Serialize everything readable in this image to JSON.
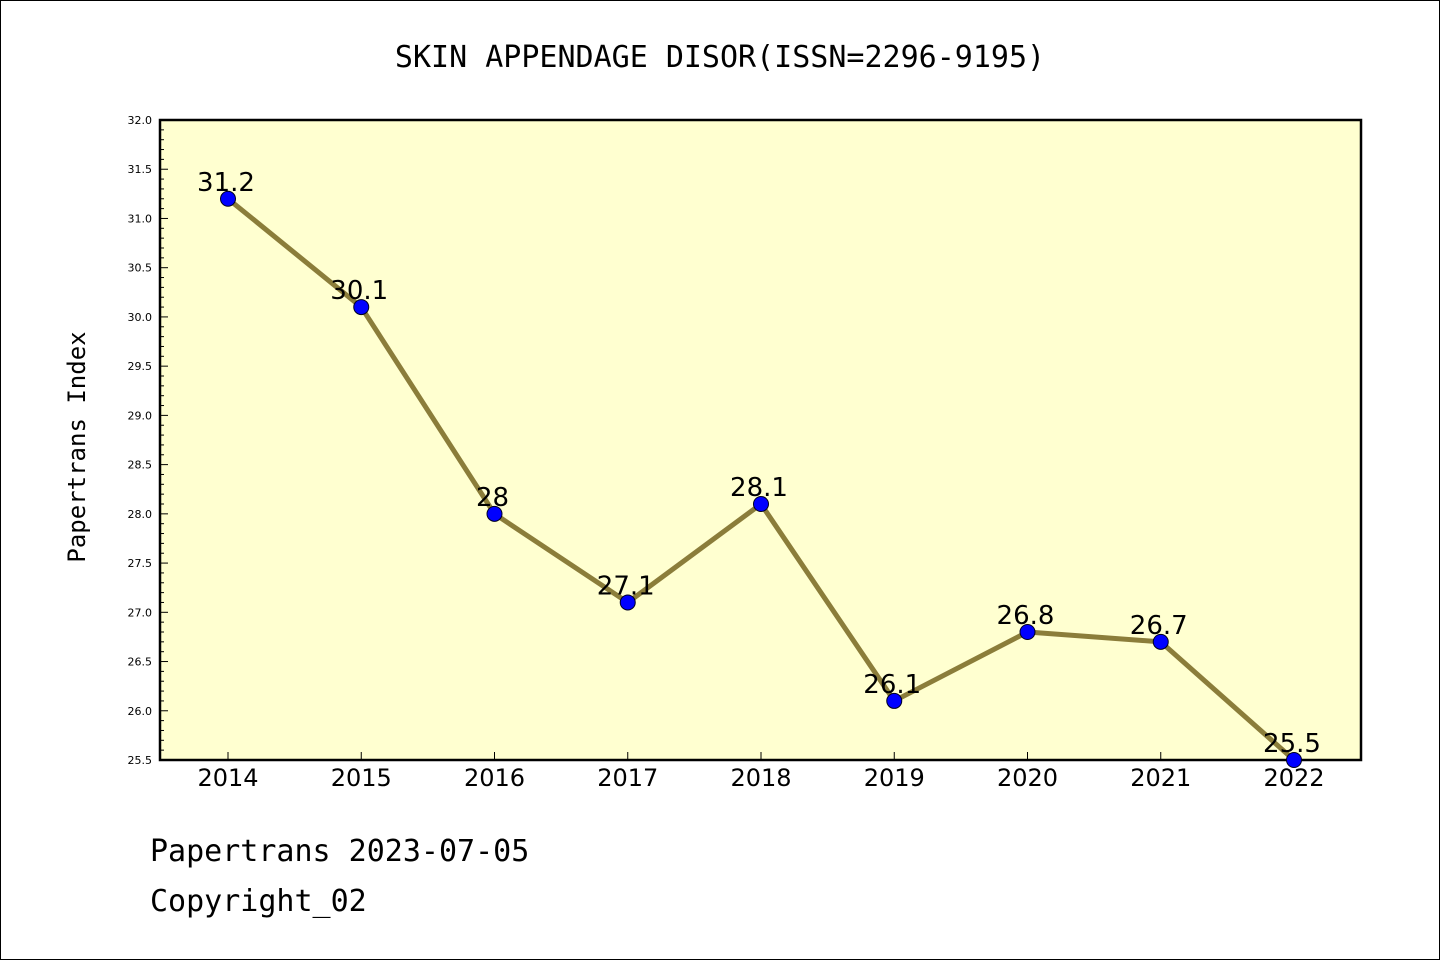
{
  "chart_data": {
    "type": "line",
    "title": "SKIN APPENDAGE DISOR(ISSN=2296-9195)",
    "xlabel": "",
    "ylabel": "Papertrans Index",
    "x": [
      "2014",
      "2015",
      "2016",
      "2017",
      "2018",
      "2019",
      "2020",
      "2021",
      "2022"
    ],
    "series": [
      {
        "values": [
          31.2,
          30.1,
          28,
          27.1,
          28.1,
          26.1,
          26.8,
          26.7,
          25.5
        ]
      }
    ],
    "data_labels": [
      "31.2",
      "30.1",
      "28",
      "27.1",
      "28.1",
      "26.1",
      "26.8",
      "26.7",
      "25.5"
    ],
    "ylim": [
      25.5,
      32.0
    ],
    "yticks": [
      "25.5",
      "26.0",
      "26.5",
      "27.0",
      "27.5",
      "28.0",
      "28.5",
      "29.0",
      "29.5",
      "30.0",
      "30.5",
      "31.0",
      "31.5",
      "32.0"
    ],
    "grid": false,
    "legend": "none",
    "colors": {
      "plot_background": "#ffffd0",
      "line": "#8b7d3a",
      "marker": "#0000ff"
    }
  },
  "footer": {
    "line1": "Papertrans 2023-07-05",
    "line2": "Copyright_02"
  }
}
